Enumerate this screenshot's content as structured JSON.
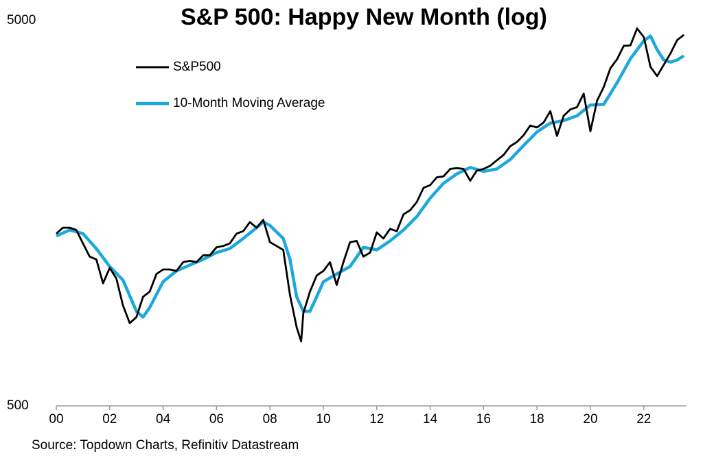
{
  "chart_data": {
    "type": "line",
    "title": "S&P 500: Happy New Month (log)",
    "source": "Source: Topdown Charts, Refinitiv Datastream",
    "log_y": true,
    "legend": "upper left",
    "xlim": [
      2000,
      2023.6
    ],
    "xticks": [
      {
        "value": 2000,
        "label": "00"
      },
      {
        "value": 2002,
        "label": "02"
      },
      {
        "value": 2004,
        "label": "04"
      },
      {
        "value": 2006,
        "label": "06"
      },
      {
        "value": 2008,
        "label": "08"
      },
      {
        "value": 2010,
        "label": "10"
      },
      {
        "value": 2012,
        "label": "12"
      },
      {
        "value": 2014,
        "label": "14"
      },
      {
        "value": 2016,
        "label": "16"
      },
      {
        "value": 2018,
        "label": "18"
      },
      {
        "value": 2020,
        "label": "20"
      },
      {
        "value": 2022,
        "label": "22"
      }
    ],
    "ylim": [
      500,
      5000
    ],
    "yticks": [
      500,
      5000
    ],
    "series": [
      {
        "name": "S&P500",
        "color": "#000000",
        "x": [
          2000,
          2000.25,
          2000.5,
          2000.75,
          2001,
          2001.25,
          2001.5,
          2001.75,
          2002,
          2002.25,
          2002.5,
          2002.75,
          2003,
          2003.25,
          2003.5,
          2003.75,
          2004,
          2004.25,
          2004.5,
          2004.75,
          2005,
          2005.25,
          2005.5,
          2005.75,
          2006,
          2006.25,
          2006.5,
          2006.75,
          2007,
          2007.25,
          2007.5,
          2007.75,
          2008,
          2008.25,
          2008.5,
          2008.75,
          2009,
          2009.17,
          2009.25,
          2009.5,
          2009.75,
          2010,
          2010.25,
          2010.5,
          2010.75,
          2011,
          2011.25,
          2011.5,
          2011.75,
          2012,
          2012.25,
          2012.5,
          2012.75,
          2013,
          2013.25,
          2013.5,
          2013.75,
          2014,
          2014.25,
          2014.5,
          2014.75,
          2015,
          2015.25,
          2015.5,
          2015.75,
          2016,
          2016.25,
          2016.5,
          2016.75,
          2017,
          2017.25,
          2017.5,
          2017.75,
          2018,
          2018.25,
          2018.5,
          2018.75,
          2019,
          2019.25,
          2019.5,
          2019.75,
          2020,
          2020.25,
          2020.5,
          2020.75,
          2021,
          2021.25,
          2021.5,
          2021.75,
          2022,
          2022.25,
          2022.5,
          2022.75,
          2023,
          2023.25,
          2023.5
        ],
        "values": [
          1400,
          1450,
          1450,
          1430,
          1320,
          1220,
          1200,
          1040,
          1140,
          1070,
          910,
          820,
          850,
          960,
          990,
          1100,
          1130,
          1130,
          1120,
          1180,
          1190,
          1180,
          1230,
          1230,
          1290,
          1300,
          1320,
          1400,
          1420,
          1500,
          1450,
          1520,
          1330,
          1300,
          1270,
          970,
          800,
          735,
          870,
          990,
          1090,
          1120,
          1180,
          1030,
          1180,
          1330,
          1340,
          1220,
          1250,
          1410,
          1360,
          1440,
          1420,
          1570,
          1610,
          1690,
          1840,
          1870,
          1960,
          1970,
          2060,
          2070,
          2060,
          1920,
          2040,
          2060,
          2100,
          2170,
          2240,
          2360,
          2420,
          2520,
          2670,
          2640,
          2720,
          2910,
          2510,
          2830,
          2940,
          2980,
          3230,
          2580,
          3100,
          3360,
          3760,
          3970,
          4300,
          4310,
          4770,
          4530,
          3790,
          3590,
          3840,
          4110,
          4450,
          4590
        ]
      },
      {
        "name": "10-Month Moving Average",
        "color": "#1ba8dd",
        "x": [
          2000,
          2000.5,
          2001,
          2001.5,
          2002,
          2002.5,
          2003,
          2003.25,
          2003.5,
          2004,
          2004.5,
          2005,
          2005.5,
          2006,
          2006.5,
          2007,
          2007.5,
          2007.75,
          2008,
          2008.5,
          2008.75,
          2009,
          2009.25,
          2009.5,
          2009.75,
          2010,
          2010.5,
          2011,
          2011.5,
          2012,
          2012.5,
          2013,
          2013.5,
          2014,
          2014.5,
          2015,
          2015.5,
          2016,
          2016.5,
          2017,
          2017.5,
          2018,
          2018.5,
          2019,
          2019.5,
          2020,
          2020.5,
          2021,
          2021.5,
          2022,
          2022.25,
          2022.5,
          2022.75,
          2023,
          2023.25,
          2023.5
        ],
        "values": [
          1380,
          1430,
          1400,
          1280,
          1150,
          1060,
          880,
          850,
          900,
          1050,
          1120,
          1160,
          1200,
          1250,
          1280,
          1360,
          1450,
          1500,
          1470,
          1360,
          1200,
          960,
          880,
          880,
          960,
          1050,
          1100,
          1150,
          1290,
          1270,
          1340,
          1430,
          1550,
          1730,
          1890,
          2000,
          2080,
          2030,
          2060,
          2180,
          2370,
          2570,
          2710,
          2750,
          2830,
          3020,
          3030,
          3450,
          3980,
          4430,
          4560,
          4200,
          3950,
          3900,
          3950,
          4050
        ]
      }
    ]
  }
}
